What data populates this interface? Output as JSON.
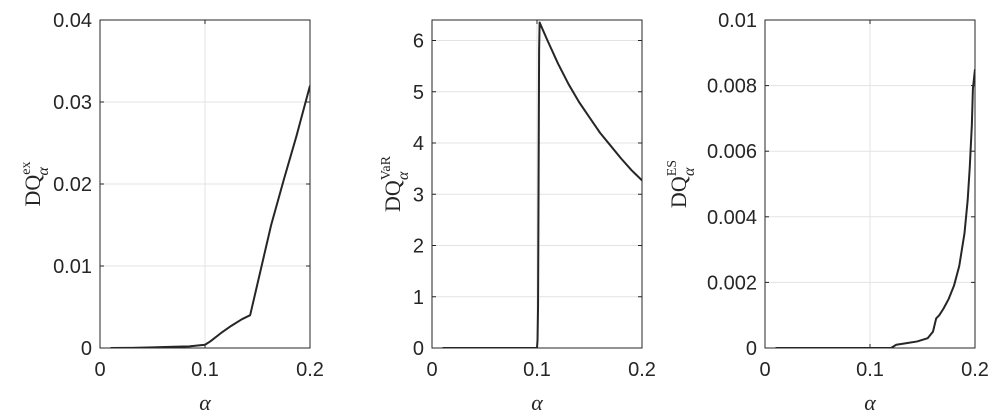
{
  "colors": {
    "line": "#262626",
    "axis": "#262626",
    "grid": "#e3e3e3",
    "background": "#ffffff"
  },
  "chart_data": [
    {
      "type": "line",
      "xlabel": "α",
      "ylabel": {
        "base": "DQ",
        "sup": "ex",
        "sub": "α"
      },
      "xlim": [
        0,
        0.2
      ],
      "ylim": [
        0,
        0.04
      ],
      "xticks": [
        0,
        0.1,
        0.2
      ],
      "xtick_labels": [
        "0",
        "0.1",
        "0.2"
      ],
      "yticks": [
        0,
        0.01,
        0.02,
        0.03,
        0.04
      ],
      "ytick_labels": [
        "0",
        "0.01",
        "0.02",
        "0.03",
        "0.04"
      ],
      "grid": true,
      "series": [
        {
          "x": [
            0.01,
            0.03,
            0.05,
            0.07,
            0.085,
            0.1,
            0.105,
            0.115,
            0.125,
            0.135,
            0.143,
            0.153,
            0.163,
            0.175,
            0.187,
            0.2
          ],
          "y": [
            0,
            2e-05,
            8e-05,
            0.00015,
            0.0002,
            0.0004,
            0.0008,
            0.0018,
            0.0027,
            0.0035,
            0.004,
            0.0095,
            0.015,
            0.0205,
            0.0258,
            0.032
          ]
        }
      ]
    },
    {
      "type": "line",
      "xlabel": "α",
      "ylabel": {
        "base": "DQ",
        "sup": "VaR",
        "sub": "α"
      },
      "xlim": [
        0,
        0.2
      ],
      "ylim": [
        0,
        6.4
      ],
      "xticks": [
        0,
        0.1,
        0.2
      ],
      "xtick_labels": [
        "0",
        "0.1",
        "0.2"
      ],
      "yticks": [
        0,
        1,
        2,
        3,
        4,
        5,
        6
      ],
      "ytick_labels": [
        "0",
        "1",
        "2",
        "3",
        "4",
        "5",
        "6"
      ],
      "grid": true,
      "series": [
        {
          "x": [
            0.01,
            0.05,
            0.09,
            0.1,
            0.1005,
            0.101,
            0.1015,
            0.102,
            0.1025,
            0.11,
            0.12,
            0.13,
            0.14,
            0.15,
            0.16,
            0.17,
            0.18,
            0.19,
            0.2
          ],
          "y": [
            0,
            0,
            0,
            0,
            0.15,
            0.8,
            3.2,
            5.8,
            6.35,
            6.0,
            5.55,
            5.15,
            4.8,
            4.5,
            4.2,
            3.95,
            3.7,
            3.47,
            3.27
          ]
        }
      ]
    },
    {
      "type": "line",
      "xlabel": "α",
      "ylabel": {
        "base": "DQ",
        "sup": "ES",
        "sub": "α"
      },
      "xlim": [
        0,
        0.2
      ],
      "ylim": [
        0,
        0.01
      ],
      "xticks": [
        0,
        0.1,
        0.2
      ],
      "xtick_labels": [
        "0",
        "0.1",
        "0.2"
      ],
      "yticks": [
        0,
        0.002,
        0.004,
        0.006,
        0.008,
        0.01
      ],
      "ytick_labels": [
        "0",
        "0.002",
        "0.004",
        "0.006",
        "0.008",
        "0.01"
      ],
      "grid": true,
      "series": [
        {
          "x": [
            0.01,
            0.06,
            0.12,
            0.125,
            0.135,
            0.145,
            0.155,
            0.16,
            0.163,
            0.166,
            0.17,
            0.175,
            0.18,
            0.185,
            0.19,
            0.193,
            0.195,
            0.197,
            0.198,
            0.199,
            0.2
          ],
          "y": [
            0,
            0,
            0,
            0.0001,
            0.00015,
            0.0002,
            0.0003,
            0.0005,
            0.0009,
            0.001,
            0.0012,
            0.0015,
            0.0019,
            0.0025,
            0.0035,
            0.0045,
            0.0055,
            0.0068,
            0.0079,
            0.0082,
            0.0085
          ]
        }
      ]
    }
  ]
}
